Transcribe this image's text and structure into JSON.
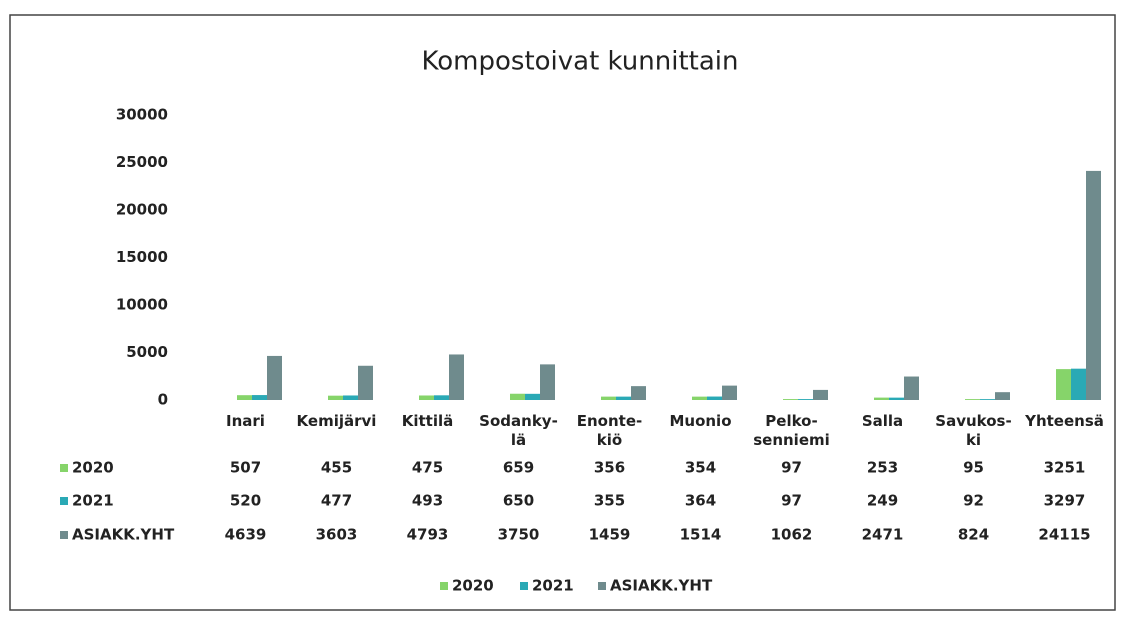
{
  "chart_data": {
    "type": "bar",
    "title": "Kompostoivat kunnittain",
    "categories": [
      "Inari",
      "Kemijärvi",
      "Kittilä",
      "Sodanky-\nlä",
      "Enonte-\nkiö",
      "Muonio",
      "Pelko-\nsenniemi",
      "Salla",
      "Savukos-\nki",
      "Yhteensä"
    ],
    "series": [
      {
        "name": "2020",
        "color": "#86d46a",
        "values": [
          507,
          455,
          475,
          659,
          356,
          354,
          97,
          253,
          95,
          3251
        ]
      },
      {
        "name": "2021",
        "color": "#2aa9b5",
        "values": [
          520,
          477,
          493,
          650,
          355,
          364,
          97,
          249,
          92,
          3297
        ]
      },
      {
        "name": "ASIAKK.YHT",
        "color": "#6f8b8d",
        "values": [
          4639,
          3603,
          4793,
          3750,
          1459,
          1514,
          1062,
          2471,
          824,
          24115
        ]
      }
    ],
    "ylim": [
      0,
      30000
    ],
    "yticks": [
      0,
      5000,
      10000,
      15000,
      20000,
      25000,
      30000
    ],
    "grid": false,
    "legend": "bottom"
  }
}
